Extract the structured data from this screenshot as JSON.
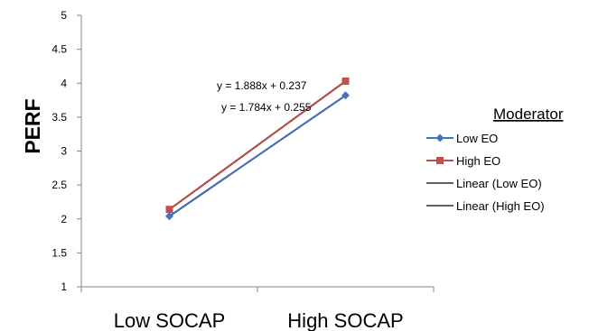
{
  "chart_data": {
    "type": "line",
    "ylabel": "PERF",
    "xlabel": "",
    "categories": [
      "Low SOCAP",
      "High SOCAP"
    ],
    "ylim": [
      1,
      5
    ],
    "yticks": [
      "1",
      "1.5",
      "2",
      "2.5",
      "3",
      "3.5",
      "4",
      "4.5",
      "5"
    ],
    "grid": false,
    "legend_position": "right",
    "legend_title": "Moderator",
    "series": [
      {
        "name": "Low EO",
        "values": [
          2.04,
          3.82
        ],
        "color": "#4472C4",
        "marker": "diamond"
      },
      {
        "name": "High EO",
        "values": [
          2.14,
          4.03
        ],
        "color": "#C0504D",
        "marker": "square"
      }
    ],
    "trendlines": [
      {
        "name": "Linear (Low EO)",
        "color": "#1F3A7A",
        "equation": "y = 1.784x + 0.255"
      },
      {
        "name": "Linear (High EO)",
        "color": "#6B1A14",
        "equation": "y = 1.888x + 0.237"
      }
    ]
  }
}
